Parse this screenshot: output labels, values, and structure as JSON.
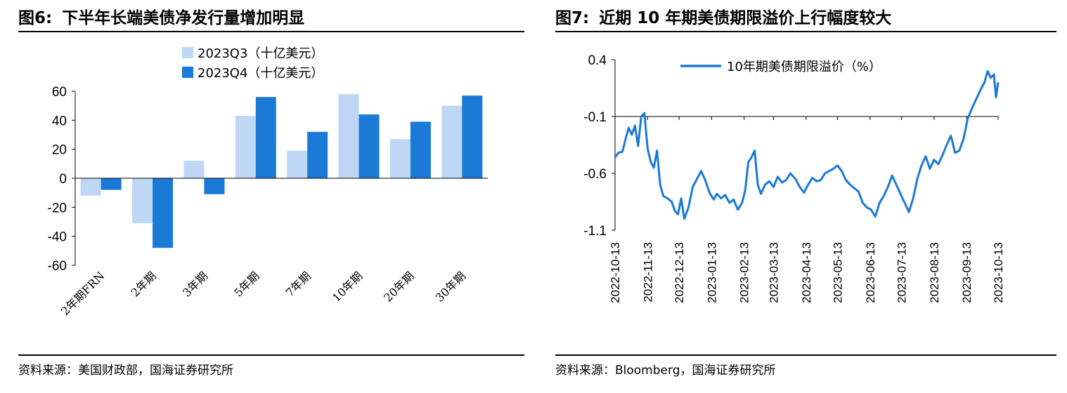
{
  "left": {
    "fig_label": "图6:",
    "title": "下半年长端美债净发行量增加明显",
    "source": "资料来源：美国财政部，国海证券研究所"
  },
  "right": {
    "fig_label": "图7:",
    "title": "近期 10 年期美债期限溢价上行幅度较大",
    "source": "资料来源：Bloomberg，国海证券研究所"
  },
  "chart_data": [
    {
      "type": "bar",
      "categories": [
        "2年期FRN",
        "2年期",
        "3年期",
        "5年期",
        "7年期",
        "10年期",
        "20年期",
        "30年期"
      ],
      "series": [
        {
          "name": "2023Q3（十亿美元）",
          "color": "#bdd7f5",
          "values": [
            -12,
            -31,
            12,
            43,
            19,
            58,
            27,
            50
          ]
        },
        {
          "name": "2023Q4（十亿美元）",
          "color": "#1a7ad6",
          "values": [
            -8,
            -48,
            -11,
            56,
            32,
            44,
            39,
            57
          ]
        }
      ],
      "ylim": [
        -60,
        60
      ],
      "yticks": [
        -60,
        -40,
        -20,
        0,
        20,
        40,
        60
      ],
      "legend": "top-center"
    },
    {
      "type": "line",
      "series": [
        {
          "name": "10年期美债期限溢价（%）",
          "color": "#1a7ad6",
          "points": [
            [
              "2022-10-13",
              -0.46
            ],
            [
              "2022-10-16",
              -0.42
            ],
            [
              "2022-10-20",
              -0.41
            ],
            [
              "2022-10-23",
              -0.3
            ],
            [
              "2022-10-26",
              -0.2
            ],
            [
              "2022-10-29",
              -0.26
            ],
            [
              "2022-11-01",
              -0.18
            ],
            [
              "2022-11-04",
              -0.36
            ],
            [
              "2022-11-07",
              -0.1
            ],
            [
              "2022-11-10",
              -0.07
            ],
            [
              "2022-11-13",
              -0.38
            ],
            [
              "2022-11-16",
              -0.5
            ],
            [
              "2022-11-19",
              -0.55
            ],
            [
              "2022-11-22",
              -0.4
            ],
            [
              "2022-11-25",
              -0.7
            ],
            [
              "2022-11-28",
              -0.8
            ],
            [
              "2022-12-02",
              -0.82
            ],
            [
              "2022-12-06",
              -0.85
            ],
            [
              "2022-12-09",
              -0.93
            ],
            [
              "2022-12-12",
              -0.96
            ],
            [
              "2022-12-15",
              -0.82
            ],
            [
              "2022-12-18",
              -1.0
            ],
            [
              "2022-12-22",
              -0.9
            ],
            [
              "2022-12-26",
              -0.72
            ],
            [
              "2022-12-30",
              -0.65
            ],
            [
              "2023-01-03",
              -0.58
            ],
            [
              "2023-01-07",
              -0.66
            ],
            [
              "2023-01-11",
              -0.77
            ],
            [
              "2023-01-15",
              -0.83
            ],
            [
              "2023-01-18",
              -0.78
            ],
            [
              "2023-01-22",
              -0.82
            ],
            [
              "2023-01-26",
              -0.79
            ],
            [
              "2023-01-30",
              -0.86
            ],
            [
              "2023-02-03",
              -0.83
            ],
            [
              "2023-02-07",
              -0.92
            ],
            [
              "2023-02-11",
              -0.86
            ],
            [
              "2023-02-14",
              -0.75
            ],
            [
              "2023-02-17",
              -0.5
            ],
            [
              "2023-02-20",
              -0.46
            ],
            [
              "2023-02-23",
              -0.4
            ],
            [
              "2023-02-26",
              -0.7
            ],
            [
              "2023-03-01",
              -0.78
            ],
            [
              "2023-03-05",
              -0.7
            ],
            [
              "2023-03-09",
              -0.67
            ],
            [
              "2023-03-13",
              -0.72
            ],
            [
              "2023-03-17",
              -0.63
            ],
            [
              "2023-03-21",
              -0.68
            ],
            [
              "2023-03-25",
              -0.66
            ],
            [
              "2023-03-29",
              -0.6
            ],
            [
              "2023-04-03",
              -0.65
            ],
            [
              "2023-04-07",
              -0.72
            ],
            [
              "2023-04-11",
              -0.77
            ],
            [
              "2023-04-15",
              -0.7
            ],
            [
              "2023-04-19",
              -0.64
            ],
            [
              "2023-04-23",
              -0.67
            ],
            [
              "2023-04-27",
              -0.66
            ],
            [
              "2023-05-01",
              -0.6
            ],
            [
              "2023-05-05",
              -0.58
            ],
            [
              "2023-05-09",
              -0.56
            ],
            [
              "2023-05-13",
              -0.53
            ],
            [
              "2023-05-17",
              -0.58
            ],
            [
              "2023-05-21",
              -0.66
            ],
            [
              "2023-05-25",
              -0.7
            ],
            [
              "2023-05-29",
              -0.73
            ],
            [
              "2023-06-02",
              -0.76
            ],
            [
              "2023-06-06",
              -0.86
            ],
            [
              "2023-06-10",
              -0.9
            ],
            [
              "2023-06-14",
              -0.92
            ],
            [
              "2023-06-18",
              -0.98
            ],
            [
              "2023-06-22",
              -0.86
            ],
            [
              "2023-06-26",
              -0.8
            ],
            [
              "2023-06-30",
              -0.72
            ],
            [
              "2023-07-04",
              -0.62
            ],
            [
              "2023-07-08",
              -0.7
            ],
            [
              "2023-07-12",
              -0.78
            ],
            [
              "2023-07-16",
              -0.86
            ],
            [
              "2023-07-20",
              -0.94
            ],
            [
              "2023-07-24",
              -0.82
            ],
            [
              "2023-07-28",
              -0.65
            ],
            [
              "2023-08-01",
              -0.53
            ],
            [
              "2023-08-05",
              -0.45
            ],
            [
              "2023-08-09",
              -0.56
            ],
            [
              "2023-08-13",
              -0.48
            ],
            [
              "2023-08-17",
              -0.52
            ],
            [
              "2023-08-21",
              -0.44
            ],
            [
              "2023-08-25",
              -0.35
            ],
            [
              "2023-08-29",
              -0.27
            ],
            [
              "2023-09-02",
              -0.42
            ],
            [
              "2023-09-06",
              -0.4
            ],
            [
              "2023-09-10",
              -0.3
            ],
            [
              "2023-09-14",
              -0.12
            ],
            [
              "2023-09-18",
              -0.03
            ],
            [
              "2023-09-22",
              0.05
            ],
            [
              "2023-09-26",
              0.13
            ],
            [
              "2023-09-30",
              0.2
            ],
            [
              "2023-10-03",
              0.3
            ],
            [
              "2023-10-06",
              0.24
            ],
            [
              "2023-10-09",
              0.27
            ],
            [
              "2023-10-11",
              0.07
            ],
            [
              "2023-10-13",
              0.2
            ]
          ]
        }
      ],
      "ylim": [
        -1.1,
        0.4
      ],
      "yticks": [
        -1.1,
        -0.6,
        -0.1,
        0.4
      ],
      "xticks": [
        "2022-10-13",
        "2022-11-13",
        "2022-12-13",
        "2023-01-13",
        "2023-02-13",
        "2023-03-13",
        "2023-04-13",
        "2023-05-13",
        "2023-06-13",
        "2023-07-13",
        "2023-08-13",
        "2023-09-13",
        "2023-10-13"
      ],
      "legend": "top-center"
    }
  ]
}
